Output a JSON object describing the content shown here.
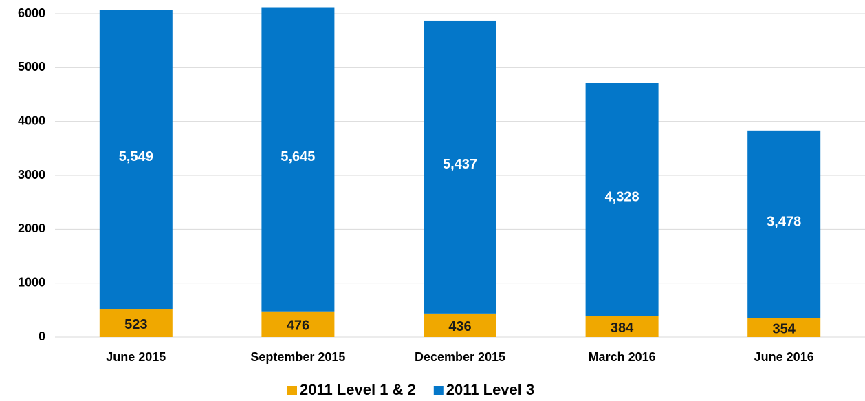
{
  "chart_data": {
    "type": "stacked_bar",
    "categories": [
      "June 2015",
      "September 2015",
      "December 2015",
      "March 2016",
      "June 2016"
    ],
    "series": [
      {
        "name": "2011 Level 1 & 2",
        "color": "#f0a800",
        "values": [
          523,
          476,
          436,
          384,
          354
        ]
      },
      {
        "name": "2011 Level 3",
        "color": "#0477c9",
        "values": [
          5549,
          5645,
          5437,
          4328,
          3478
        ],
        "value_labels": [
          "5,549",
          "5,645",
          "5,437",
          "4,328",
          "3,478"
        ]
      }
    ],
    "ylim": [
      0,
      6000
    ],
    "yticks": [
      0,
      1000,
      2000,
      3000,
      4000,
      5000,
      6000
    ],
    "grid": true,
    "legend": "bottom"
  }
}
